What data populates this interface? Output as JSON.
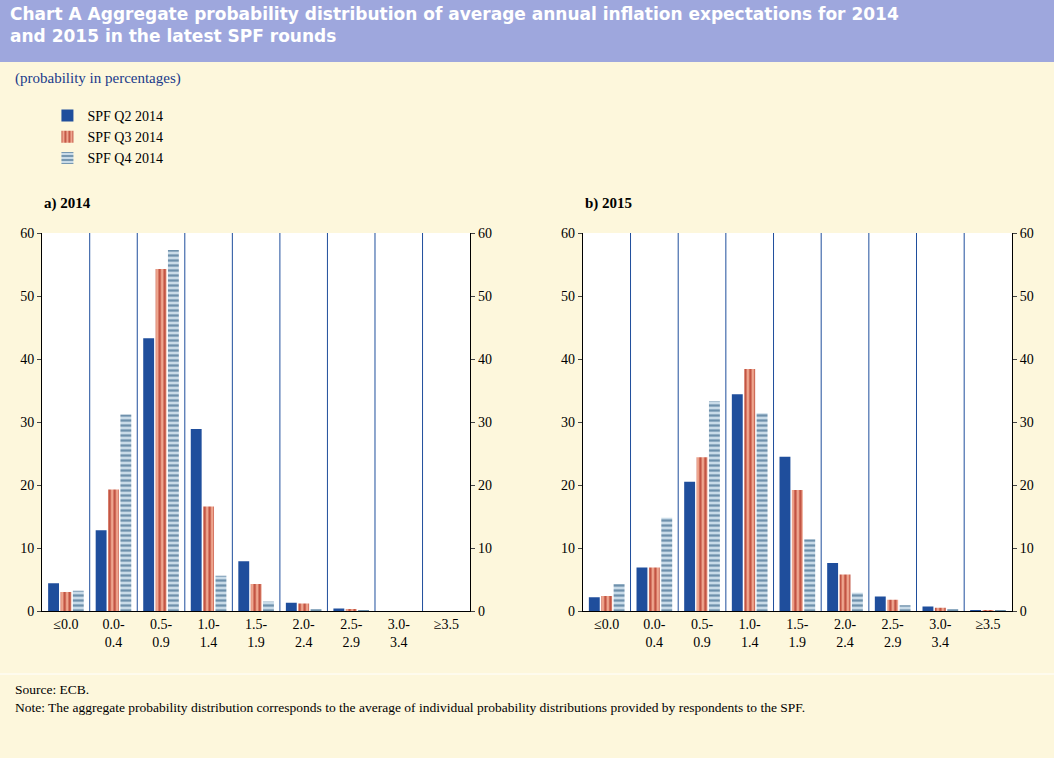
{
  "title": "Chart A Aggregate probability distribution of average annual inflation expectations for 2014 and 2015 in the latest SPF rounds",
  "subtitle": "(probability in percentages)",
  "source": "Source: ECB.",
  "note": "Note: The aggregate probability distribution corresponds to the average of individual probability distributions provided by respondents to the SPF.",
  "chart_data": [
    {
      "type": "bar",
      "title": "a) 2014",
      "categories": [
        "≤0.0",
        "0.0-0.4",
        "0.5-0.9",
        "1.0-1.4",
        "1.5-1.9",
        "2.0-2.4",
        "2.5-2.9",
        "3.0-3.4",
        "≥3.5"
      ],
      "series": [
        {
          "name": "SPF Q2 2014",
          "color": "#1f4e9c",
          "marker": "solid",
          "values": [
            4.4,
            12.8,
            43.3,
            28.9,
            7.9,
            1.3,
            0.4,
            0,
            0
          ]
        },
        {
          "name": "SPF Q3 2014",
          "color": "#eea58e",
          "marker": "vertical_stripes",
          "values": [
            3.0,
            19.3,
            54.3,
            16.6,
            4.3,
            1.2,
            0.3,
            0,
            0
          ]
        },
        {
          "name": "SPF Q4 2014",
          "color": "#c9dbe8",
          "marker": "horizontal_stripes",
          "values": [
            3.2,
            31.2,
            57.3,
            5.6,
            1.5,
            0.2,
            0.1,
            0,
            0
          ]
        }
      ],
      "ylim": [
        0,
        60
      ],
      "yticks": [
        0,
        10,
        20,
        30,
        40,
        50,
        60
      ],
      "legend": "top left"
    },
    {
      "type": "bar",
      "title": "b) 2015",
      "categories": [
        "≤0.0",
        "0.0-0.4",
        "0.5-0.9",
        "1.0-1.4",
        "1.5-1.9",
        "2.0-2.4",
        "2.5-2.9",
        "3.0-3.4",
        "≥3.5"
      ],
      "series": [
        {
          "name": "SPF Q2 2014",
          "color": "#1f4e9c",
          "marker": "solid",
          "values": [
            2.2,
            6.9,
            20.5,
            34.4,
            24.5,
            7.6,
            2.3,
            0.7,
            0.1
          ]
        },
        {
          "name": "SPF Q3 2014",
          "color": "#eea58e",
          "marker": "vertical_stripes",
          "values": [
            2.4,
            6.9,
            24.4,
            38.4,
            19.2,
            5.8,
            1.8,
            0.5,
            0.1
          ]
        },
        {
          "name": "SPF Q4 2014",
          "color": "#c9dbe8",
          "marker": "horizontal_stripes",
          "values": [
            4.3,
            14.8,
            33.3,
            31.4,
            11.4,
            2.9,
            0.9,
            0.3,
            0.1
          ]
        }
      ],
      "ylim": [
        0,
        60
      ],
      "yticks": [
        0,
        10,
        20,
        30,
        40,
        50,
        60
      ]
    }
  ]
}
